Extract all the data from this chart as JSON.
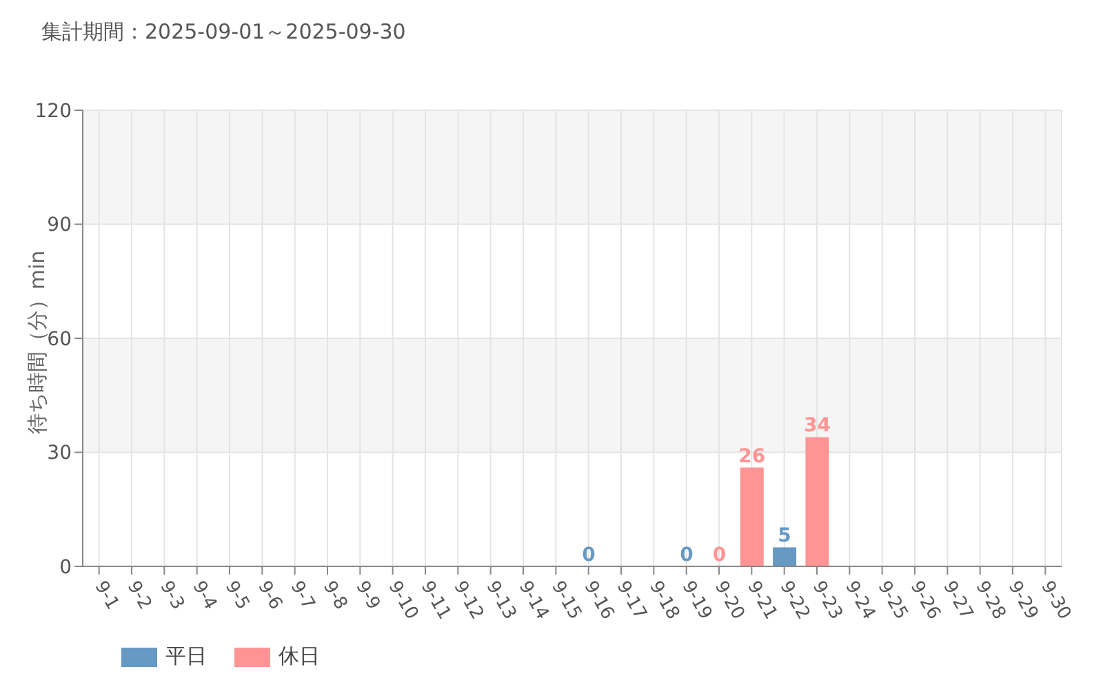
{
  "chart_data": {
    "type": "bar",
    "title": "集計期間：2025-09-01～2025-09-30",
    "ylabel": "待ち時間（分）min",
    "categories": [
      "9-1",
      "9-2",
      "9-3",
      "9-4",
      "9-5",
      "9-6",
      "9-7",
      "9-8",
      "9-9",
      "9-10",
      "9-11",
      "9-12",
      "9-13",
      "9-14",
      "9-15",
      "9-16",
      "9-17",
      "9-18",
      "9-19",
      "9-20",
      "9-21",
      "9-22",
      "9-23",
      "9-24",
      "9-25",
      "9-26",
      "9-27",
      "9-28",
      "9-29",
      "9-30"
    ],
    "series": [
      {
        "name": "平日",
        "color": "#6699c4",
        "values": [
          null,
          null,
          null,
          null,
          null,
          null,
          null,
          null,
          null,
          null,
          null,
          null,
          null,
          null,
          null,
          0,
          null,
          null,
          0,
          null,
          null,
          5,
          null,
          null,
          null,
          null,
          null,
          null,
          null,
          null
        ]
      },
      {
        "name": "休日",
        "color": "#ff9494",
        "values": [
          null,
          null,
          null,
          null,
          null,
          null,
          null,
          null,
          null,
          null,
          null,
          null,
          null,
          null,
          null,
          null,
          null,
          null,
          null,
          0,
          26,
          null,
          34,
          null,
          null,
          null,
          null,
          null,
          null,
          null
        ]
      }
    ],
    "stacked": true,
    "ylim": [
      0,
      120
    ],
    "yticks": [
      0,
      30,
      60,
      90,
      120
    ],
    "grid": true,
    "legend": "bottom left",
    "data_labels": true
  }
}
